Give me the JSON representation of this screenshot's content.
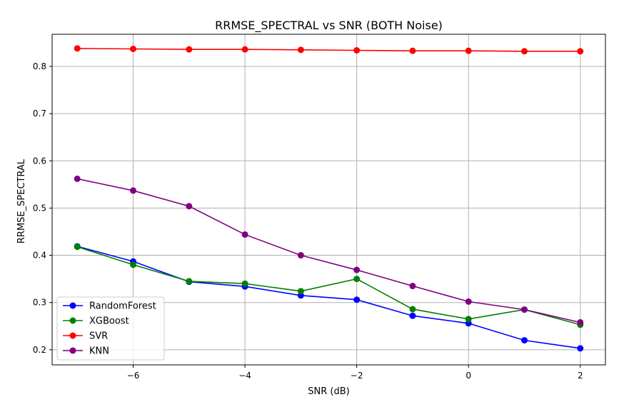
{
  "chart_data": {
    "type": "line",
    "title": "RRMSE_SPECTRAL vs SNR (BOTH Noise)",
    "xlabel": "SNR (dB)",
    "ylabel": "RRMSE_SPECTRAL",
    "x": [
      -7,
      -6,
      -5,
      -4,
      -3,
      -2,
      -1,
      0,
      1,
      2
    ],
    "xlim": [
      -7.45,
      2.45
    ],
    "ylim": [
      0.168,
      0.868
    ],
    "xticks": [
      -6,
      -4,
      -2,
      0,
      2
    ],
    "xtick_labels": [
      "−6",
      "−4",
      "−2",
      "0",
      "2"
    ],
    "yticks": [
      0.2,
      0.3,
      0.4,
      0.5,
      0.6,
      0.7,
      0.8
    ],
    "ytick_labels": [
      "0.2",
      "0.3",
      "0.4",
      "0.5",
      "0.6",
      "0.7",
      "0.8"
    ],
    "grid": true,
    "legend_position": "lower-left",
    "series": [
      {
        "name": "RandomForest",
        "color": "#0000ff",
        "values": [
          0.419,
          0.387,
          0.344,
          0.334,
          0.315,
          0.306,
          0.272,
          0.256,
          0.22,
          0.203
        ]
      },
      {
        "name": "XGBoost",
        "color": "#008000",
        "values": [
          0.418,
          0.38,
          0.345,
          0.34,
          0.324,
          0.35,
          0.286,
          0.265,
          0.285,
          0.253
        ]
      },
      {
        "name": "SVR",
        "color": "#ff0000",
        "values": [
          0.838,
          0.837,
          0.836,
          0.836,
          0.835,
          0.834,
          0.833,
          0.833,
          0.832,
          0.832
        ]
      },
      {
        "name": "KNN",
        "color": "#800080",
        "values": [
          0.562,
          0.537,
          0.504,
          0.444,
          0.4,
          0.369,
          0.335,
          0.302,
          0.285,
          0.258
        ]
      }
    ]
  }
}
